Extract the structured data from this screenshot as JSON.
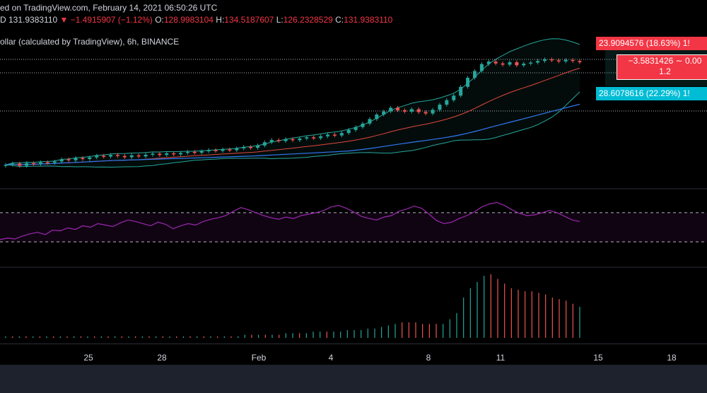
{
  "header": {
    "line1": "ed on TradingView.com, February 14, 2021 06:50:26 UTC",
    "line2_price": "D  131.9383110",
    "line2_change": "▼ −1.4915907 (−1.12%)",
    "line2_o_label": "O:",
    "line2_o": "128.9983104",
    "line2_h_label": "H:",
    "line2_h": "134.5187607",
    "line2_l_label": "L:",
    "line2_l": "126.2328529",
    "line2_c_label": "C:",
    "line2_c": "131.9383110",
    "line3": "ollar (calculated by TradingView), 6h, BINANCE"
  },
  "tags": {
    "red": "23.9094576 (18.63%) 1!",
    "box_line1": "−3.5831426 ∼ 0.00",
    "box_line2": "1.2",
    "cyan": "28.6078616 (22.29%) 1!"
  },
  "colors": {
    "up": "#26a69a",
    "down": "#ef5350",
    "bb_band": "#26a69a",
    "ma_red": "#e2473f",
    "ma_blue": "#3179f5",
    "rsi": "#9c27b0",
    "hist_green": "#26a69a",
    "hist_red": "#ef5350"
  },
  "chart_data": {
    "type": "line",
    "subtype": "candlestick with bollinger bands, RSI and histogram panes",
    "interval": "6h",
    "x_ticks": [
      "25",
      "28",
      "Feb",
      "4",
      "8",
      "11",
      "15",
      "18"
    ],
    "price": {
      "closes": [
        95.8,
        96.4,
        95.3,
        96.6,
        96.2,
        97.0,
        96.8,
        97.4,
        98.5,
        98.0,
        99.1,
        98.6,
        99.4,
        100.2,
        99.8,
        100.6,
        100.1,
        99.5,
        100.4,
        99.9,
        100.7,
        101.2,
        100.6,
        101.4,
        100.9,
        101.6,
        102.1,
        101.7,
        102.4,
        103.0,
        102.6,
        103.3,
        102.9,
        103.8,
        104.5,
        104.1,
        105.2,
        106.8,
        107.9,
        107.4,
        108.3,
        107.8,
        108.6,
        109.2,
        108.8,
        109.7,
        110.5,
        110.1,
        111.3,
        112.8,
        114.2,
        115.9,
        118.1,
        120.3,
        121.8,
        123.6,
        122.4,
        121.7,
        122.9,
        121.5,
        120.8,
        122.6,
        125.1,
        127.3,
        129.5,
        133.8,
        138.2,
        141.5,
        144.9,
        146.1,
        145.2,
        144.6,
        145.8,
        144.3,
        145.1,
        145.6,
        146.4,
        147.2,
        146.7,
        146.2,
        146.9,
        146.4,
        145.8
      ]
    },
    "rsi": {
      "values": [
        33,
        35,
        34,
        38,
        41,
        43,
        40,
        46,
        45,
        49,
        47,
        52,
        50,
        55,
        53,
        51,
        56,
        60,
        58,
        55,
        52,
        57,
        54,
        48,
        52,
        55,
        53,
        58,
        61,
        63,
        66,
        72,
        77,
        74,
        70,
        66,
        63,
        61,
        64,
        62,
        66,
        68,
        70,
        73,
        78,
        80,
        76,
        71,
        65,
        62,
        60,
        64,
        66,
        72,
        75,
        79,
        76,
        68,
        59,
        55,
        57,
        62,
        66,
        71,
        78,
        82,
        84,
        80,
        74,
        69,
        66,
        67,
        70,
        73,
        70,
        65,
        60,
        58
      ],
      "upper": 70,
      "lower": 30
    },
    "histogram": {
      "values": [
        1,
        1,
        1,
        1,
        1,
        1,
        1,
        1,
        1,
        1,
        1,
        1,
        1,
        1,
        1,
        1,
        1,
        1,
        1,
        1,
        1,
        1,
        1,
        1,
        1,
        1,
        1,
        1,
        1,
        1,
        1,
        1,
        1,
        1,
        1,
        2,
        2,
        2,
        2,
        2,
        2,
        3,
        3,
        3,
        3,
        4,
        4,
        4,
        4,
        4,
        5,
        5,
        5,
        6,
        6,
        7,
        8,
        9,
        10,
        10,
        10,
        9,
        9,
        9,
        9,
        12,
        16,
        26,
        32,
        36,
        40,
        41,
        38,
        35,
        32,
        31,
        30,
        30,
        29,
        28,
        26,
        25,
        24,
        22,
        20
      ],
      "colors": [
        "g",
        "r",
        "g",
        "r",
        "g",
        "r",
        "g",
        "r",
        "g",
        "r",
        "g",
        "r",
        "g",
        "r",
        "g",
        "r",
        "g",
        "r",
        "g",
        "r",
        "g",
        "r",
        "g",
        "r",
        "g",
        "r",
        "g",
        "r",
        "g",
        "r",
        "g",
        "r",
        "g",
        "r",
        "g",
        "g",
        "r",
        "g",
        "r",
        "g",
        "r",
        "g",
        "g",
        "r",
        "g",
        "g",
        "g",
        "r",
        "g",
        "g",
        "g",
        "g",
        "g",
        "g",
        "g",
        "g",
        "g",
        "g",
        "r",
        "r",
        "r",
        "r",
        "r",
        "r",
        "g",
        "g",
        "g",
        "g",
        "g",
        "g",
        "g",
        "r",
        "r",
        "r",
        "r",
        "r",
        "r",
        "r",
        "r",
        "r",
        "r",
        "r",
        "r",
        "r"
      ]
    }
  }
}
